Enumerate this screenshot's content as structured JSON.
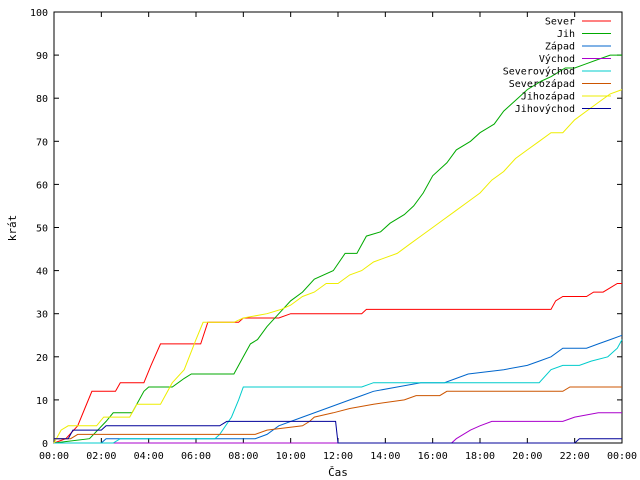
{
  "chart_data": {
    "type": "line",
    "xlabel": "Čas",
    "ylabel": "krát",
    "xlim": [
      0,
      24
    ],
    "ylim": [
      0,
      100
    ],
    "x_ticks": [
      "00:00",
      "02:00",
      "04:00",
      "06:00",
      "08:00",
      "10:00",
      "12:00",
      "14:00",
      "16:00",
      "18:00",
      "20:00",
      "22:00",
      "00:00"
    ],
    "y_ticks": [
      "0",
      "10",
      "20",
      "30",
      "40",
      "50",
      "60",
      "70",
      "80",
      "90",
      "100"
    ],
    "grid": false,
    "legend_position": "top-right",
    "series": [
      {
        "name": "Sever",
        "color": "#ff0000",
        "points": [
          [
            0,
            0
          ],
          [
            0.5,
            1
          ],
          [
            1,
            4
          ],
          [
            1.3,
            8
          ],
          [
            1.6,
            12
          ],
          [
            2.6,
            12
          ],
          [
            2.8,
            14
          ],
          [
            3.8,
            14
          ],
          [
            4.1,
            18
          ],
          [
            4.5,
            23
          ],
          [
            6.2,
            23
          ],
          [
            6.5,
            28
          ],
          [
            7.8,
            28
          ],
          [
            8,
            29
          ],
          [
            9.5,
            29
          ],
          [
            10,
            30
          ],
          [
            13,
            30
          ],
          [
            13.2,
            31
          ],
          [
            21,
            31
          ],
          [
            21.2,
            33
          ],
          [
            21.5,
            34
          ],
          [
            22.5,
            34
          ],
          [
            22.8,
            35
          ],
          [
            23.2,
            35
          ],
          [
            23.5,
            36
          ],
          [
            23.8,
            37
          ],
          [
            24,
            37
          ]
        ]
      },
      {
        "name": "Jih",
        "color": "#00aa00",
        "points": [
          [
            0,
            0
          ],
          [
            1.5,
            1
          ],
          [
            2.2,
            5
          ],
          [
            2.5,
            7
          ],
          [
            3.3,
            7
          ],
          [
            3.8,
            12
          ],
          [
            4,
            13
          ],
          [
            5,
            13
          ],
          [
            5.5,
            15
          ],
          [
            5.8,
            16
          ],
          [
            7.6,
            16
          ],
          [
            8,
            20
          ],
          [
            8.3,
            23
          ],
          [
            8.6,
            24
          ],
          [
            9,
            27
          ],
          [
            9.5,
            30
          ],
          [
            10,
            33
          ],
          [
            10.5,
            35
          ],
          [
            11,
            38
          ],
          [
            11.8,
            40
          ],
          [
            12.3,
            44
          ],
          [
            12.8,
            44
          ],
          [
            13.2,
            48
          ],
          [
            13.8,
            49
          ],
          [
            14.2,
            51
          ],
          [
            14.8,
            53
          ],
          [
            15.2,
            55
          ],
          [
            15.6,
            58
          ],
          [
            16,
            62
          ],
          [
            16.6,
            65
          ],
          [
            17,
            68
          ],
          [
            17.6,
            70
          ],
          [
            18,
            72
          ],
          [
            18.6,
            74
          ],
          [
            19,
            77
          ],
          [
            19.6,
            80
          ],
          [
            20,
            82
          ],
          [
            20.6,
            84
          ],
          [
            21,
            85
          ],
          [
            21.6,
            87
          ],
          [
            22,
            87
          ],
          [
            22.5,
            88
          ],
          [
            23,
            89
          ],
          [
            23.5,
            90
          ],
          [
            24,
            90
          ]
        ]
      },
      {
        "name": "Západ",
        "color": "#0066cc",
        "points": [
          [
            0,
            0
          ],
          [
            2,
            0
          ],
          [
            2.2,
            1
          ],
          [
            8.5,
            1
          ],
          [
            9,
            2
          ],
          [
            9.5,
            4
          ],
          [
            10.5,
            6
          ],
          [
            11.5,
            8
          ],
          [
            12.5,
            10
          ],
          [
            13,
            11
          ],
          [
            13.5,
            12
          ],
          [
            14.5,
            13
          ],
          [
            15.5,
            14
          ],
          [
            16.5,
            14
          ],
          [
            17,
            15
          ],
          [
            17.5,
            16
          ],
          [
            19,
            17
          ],
          [
            20,
            18
          ],
          [
            20.5,
            19
          ],
          [
            21,
            20
          ],
          [
            21.5,
            22
          ],
          [
            22.5,
            22
          ],
          [
            23,
            23
          ],
          [
            23.5,
            24
          ],
          [
            24,
            25
          ]
        ]
      },
      {
        "name": "Východ",
        "color": "#aa00cc",
        "points": [
          [
            0,
            0
          ],
          [
            16.8,
            0
          ],
          [
            17,
            1
          ],
          [
            17.6,
            3
          ],
          [
            18,
            4
          ],
          [
            18.5,
            5
          ],
          [
            21.5,
            5
          ],
          [
            22,
            6
          ],
          [
            23,
            7
          ],
          [
            24,
            7
          ]
        ]
      },
      {
        "name": "Severovýchod",
        "color": "#00cccc",
        "points": [
          [
            0,
            0
          ],
          [
            2.5,
            0
          ],
          [
            2.8,
            1
          ],
          [
            6.8,
            1
          ],
          [
            7,
            2
          ],
          [
            7.5,
            6
          ],
          [
            7.8,
            10
          ],
          [
            8,
            13
          ],
          [
            11,
            13
          ],
          [
            13,
            13
          ],
          [
            13.5,
            14
          ],
          [
            20.5,
            14
          ],
          [
            21,
            17
          ],
          [
            21.5,
            18
          ],
          [
            22.2,
            18
          ],
          [
            22.7,
            19
          ],
          [
            23.4,
            20
          ],
          [
            23.8,
            22
          ],
          [
            24,
            24
          ]
        ]
      },
      {
        "name": "Severozápad",
        "color": "#cc5500",
        "points": [
          [
            0,
            1
          ],
          [
            0.7,
            1
          ],
          [
            1,
            2
          ],
          [
            8.5,
            2
          ],
          [
            9,
            3
          ],
          [
            10.5,
            4
          ],
          [
            10.8,
            5
          ],
          [
            11,
            6
          ],
          [
            11.8,
            7
          ],
          [
            12.5,
            8
          ],
          [
            13.5,
            9
          ],
          [
            14.8,
            10
          ],
          [
            15.3,
            11
          ],
          [
            16.3,
            11
          ],
          [
            16.6,
            12
          ],
          [
            21.5,
            12
          ],
          [
            21.8,
            13
          ],
          [
            24,
            13
          ]
        ]
      },
      {
        "name": "Jihozápad",
        "color": "#eeee00",
        "points": [
          [
            0,
            0
          ],
          [
            0.3,
            3
          ],
          [
            0.6,
            4
          ],
          [
            1.8,
            4
          ],
          [
            2.1,
            6
          ],
          [
            3.2,
            6
          ],
          [
            3.5,
            9
          ],
          [
            4.5,
            9
          ],
          [
            5,
            14
          ],
          [
            5.5,
            17
          ],
          [
            6,
            24
          ],
          [
            6.3,
            28
          ],
          [
            7.6,
            28
          ],
          [
            8,
            29
          ],
          [
            9,
            30
          ],
          [
            9.6,
            31
          ],
          [
            10,
            32
          ],
          [
            10.5,
            34
          ],
          [
            11,
            35
          ],
          [
            11.5,
            37
          ],
          [
            12,
            37
          ],
          [
            12.5,
            39
          ],
          [
            13,
            40
          ],
          [
            13.5,
            42
          ],
          [
            14,
            43
          ],
          [
            14.5,
            44
          ],
          [
            15,
            46
          ],
          [
            15.5,
            48
          ],
          [
            16,
            50
          ],
          [
            16.5,
            52
          ],
          [
            17,
            54
          ],
          [
            17.5,
            56
          ],
          [
            18,
            58
          ],
          [
            18.5,
            61
          ],
          [
            19,
            63
          ],
          [
            19.5,
            66
          ],
          [
            20,
            68
          ],
          [
            20.5,
            70
          ],
          [
            21,
            72
          ],
          [
            21.5,
            72
          ],
          [
            22,
            75
          ],
          [
            22.5,
            77
          ],
          [
            23,
            79
          ],
          [
            23.5,
            81
          ],
          [
            24,
            82
          ]
        ]
      },
      {
        "name": "Jihovýchod",
        "color": "#000099",
        "points": [
          [
            0,
            1
          ],
          [
            0.6,
            1
          ],
          [
            0.8,
            3
          ],
          [
            2,
            3
          ],
          [
            2.2,
            4
          ],
          [
            7,
            4
          ],
          [
            7.3,
            5
          ],
          [
            11.9,
            5
          ],
          [
            12,
            0
          ],
          [
            22,
            0
          ],
          [
            22.2,
            1
          ],
          [
            24,
            1
          ]
        ]
      }
    ]
  }
}
